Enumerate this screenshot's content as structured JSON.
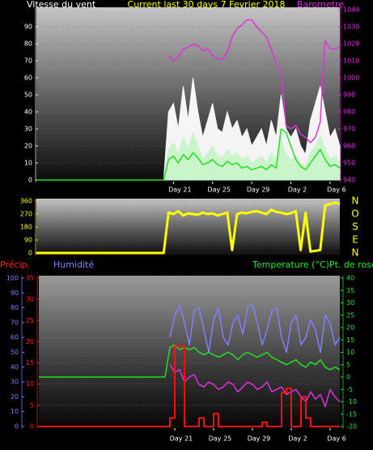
{
  "chart_data": [
    {
      "type": "line",
      "title": "Current last 30 days 7 Fevrier 2018",
      "ylabel": "Vitesse du vent",
      "y2label": "Barometre",
      "x": [
        0,
        13,
        13.5,
        14,
        14.5,
        15,
        15.5,
        16,
        16.5,
        17,
        17.5,
        18,
        18.5,
        19,
        19.5,
        20,
        20.5,
        21,
        21.5,
        22,
        22.5,
        23,
        23.5,
        24,
        24.5,
        25,
        25.5,
        26,
        26.5,
        27,
        27.5,
        28,
        28.5,
        29,
        29.5,
        30,
        30.5,
        31
      ],
      "xlim": [
        0,
        31
      ],
      "xticks": [
        {
          "value": 14,
          "label": "Day 21"
        },
        {
          "value": 18,
          "label": "Day 25"
        },
        {
          "value": 22,
          "label": "Day 29"
        },
        {
          "value": 26,
          "label": "Day 2"
        },
        {
          "value": 30,
          "label": "Day 6"
        }
      ],
      "ylim": [
        0,
        100
      ],
      "yticks": [
        0,
        10,
        20,
        30,
        40,
        50,
        60,
        70,
        80,
        90
      ],
      "y2lim": [
        940,
        1040
      ],
      "y2ticks": [
        940,
        950,
        960,
        970,
        980,
        990,
        1000,
        1010,
        1020,
        1030,
        1040
      ],
      "grid": true,
      "series": [
        {
          "color": "#ffffff",
          "style": "area",
          "values": [
            0,
            0,
            40,
            45,
            30,
            55,
            35,
            60,
            40,
            25,
            35,
            45,
            30,
            28,
            40,
            30,
            35,
            25,
            30,
            20,
            25,
            30,
            20,
            35,
            25,
            50,
            30,
            25,
            30,
            20,
            15,
            35,
            45,
            55,
            40,
            25,
            30,
            20
          ]
        },
        {
          "color": "#c8f5c8",
          "style": "area",
          "values": [
            0,
            0,
            18,
            22,
            15,
            25,
            18,
            28,
            20,
            12,
            16,
            20,
            14,
            13,
            18,
            14,
            16,
            12,
            14,
            10,
            12,
            14,
            10,
            16,
            12,
            24,
            15,
            12,
            14,
            10,
            8,
            16,
            20,
            26,
            18,
            12,
            14,
            10
          ]
        },
        {
          "color": "#22dd22",
          "style": "line",
          "values": [
            0,
            0,
            12,
            14,
            10,
            15,
            12,
            16,
            13,
            9,
            10,
            12,
            9,
            8,
            11,
            9,
            10,
            7,
            8,
            6,
            7,
            8,
            6,
            9,
            7,
            30,
            28,
            20,
            12,
            8,
            6,
            10,
            14,
            18,
            12,
            8,
            9,
            7
          ]
        },
        {
          "color": "#e030e0",
          "style": "line",
          "axis": "y2",
          "values": [
            null,
            null,
            1013,
            1010,
            1012,
            1017,
            1018,
            1019.5,
            1019,
            1016,
            1017,
            1013,
            1011,
            1011,
            1015,
            1024,
            1029,
            1031,
            1034,
            1034,
            1030,
            1027,
            1024,
            1017,
            1008,
            1004,
            972,
            970,
            972,
            967,
            965,
            962,
            965,
            974,
            1022,
            1017,
            1017,
            1018
          ]
        }
      ]
    },
    {
      "type": "line",
      "x": [
        0,
        13,
        13.5,
        14,
        14.5,
        15,
        15.5,
        16,
        16.5,
        17,
        17.5,
        18,
        18.5,
        19,
        19.5,
        20,
        20.5,
        21,
        21.5,
        22,
        22.5,
        23,
        23.5,
        24,
        24.5,
        25,
        25.5,
        26,
        26.5,
        27,
        27.5,
        28,
        28.5,
        29,
        29.5,
        30,
        30.5,
        31
      ],
      "xlim": [
        0,
        31
      ],
      "ylim": [
        0,
        360
      ],
      "yticks": [
        0,
        90,
        180,
        270,
        360
      ],
      "y2lim": [
        0,
        360
      ],
      "y2ticks": [
        {
          "value": 0,
          "label": "N"
        },
        {
          "value": 90,
          "label": "E"
        },
        {
          "value": 180,
          "label": "S"
        },
        {
          "value": 270,
          "label": "O"
        },
        {
          "value": 360,
          "label": "N"
        }
      ],
      "grid": true,
      "series": [
        {
          "color": "#ffff00",
          "style": "line",
          "width": 3,
          "values": [
            0,
            0,
            280,
            270,
            290,
            260,
            275,
            270,
            265,
            280,
            270,
            275,
            260,
            270,
            280,
            20,
            270,
            280,
            275,
            285,
            290,
            280,
            270,
            300,
            285,
            280,
            270,
            275,
            290,
            20,
            280,
            10,
            15,
            20,
            330,
            340,
            350,
            340
          ]
        }
      ]
    },
    {
      "type": "line",
      "y3label": "Précip.",
      "ylabel": "Humidité",
      "y2label": "Temperature (°C)Pt. de rosée",
      "x": [
        0,
        13,
        13.5,
        14,
        14.5,
        15,
        15.5,
        16,
        16.5,
        17,
        17.5,
        18,
        18.5,
        19,
        19.5,
        20,
        20.5,
        21,
        21.5,
        22,
        22.5,
        23,
        23.5,
        24,
        24.5,
        25,
        25.5,
        26,
        26.5,
        27,
        27.5,
        28,
        28.5,
        29,
        29.5,
        30,
        30.5,
        31
      ],
      "xlim": [
        0,
        31
      ],
      "xticks": [
        {
          "value": 14,
          "label": "Day 21"
        },
        {
          "value": 18,
          "label": "Day 25"
        },
        {
          "value": 22,
          "label": "Day 29"
        },
        {
          "value": 26,
          "label": "Day 2"
        },
        {
          "value": 30,
          "label": "Day 6"
        }
      ],
      "ylim": [
        0,
        100
      ],
      "yticks": [
        0,
        10,
        20,
        30,
        40,
        50,
        60,
        70,
        80,
        90,
        100
      ],
      "y3lim": [
        0,
        35
      ],
      "y3ticks": [
        0,
        5,
        10,
        15,
        20,
        25,
        30,
        35
      ],
      "y2lim": [
        -20,
        40
      ],
      "y2ticks": [
        -20,
        -15,
        -10,
        -5,
        0,
        5,
        10,
        15,
        20,
        25,
        30,
        35,
        40
      ],
      "grid": true,
      "series": [
        {
          "color": "#8080ff",
          "style": "line",
          "values": [
            null,
            null,
            60,
            75,
            82,
            70,
            55,
            78,
            80,
            65,
            50,
            72,
            80,
            60,
            55,
            70,
            75,
            62,
            80,
            82,
            70,
            55,
            65,
            78,
            80,
            60,
            50,
            70,
            75,
            55,
            60,
            72,
            65,
            50,
            75,
            70,
            55,
            60
          ]
        },
        {
          "color": "#22dd22",
          "style": "line",
          "axis": "y2",
          "values": [
            0,
            0,
            12,
            13,
            11,
            12,
            11,
            12,
            10,
            9,
            10,
            9,
            8,
            9,
            10,
            9,
            7,
            9,
            10,
            9,
            8,
            9,
            10,
            8,
            7,
            6,
            5,
            6,
            7,
            5,
            4,
            6,
            5,
            7,
            4,
            3,
            4,
            3
          ]
        },
        {
          "color": "#e030e0",
          "style": "line",
          "axis": "y2",
          "values": [
            null,
            null,
            5,
            2,
            3,
            -2,
            0,
            1,
            -3,
            -4,
            -2,
            -3,
            -5,
            -4,
            -2,
            -3,
            -6,
            -4,
            -2,
            -3,
            -5,
            -4,
            -2,
            -6,
            -5,
            -4,
            -7,
            -6,
            -5,
            -8,
            -10,
            -6,
            -9,
            -7,
            -12,
            -5,
            -8,
            -10
          ]
        },
        {
          "color": "#ff1010",
          "style": "line",
          "step": true,
          "width": 2,
          "axis": "y3",
          "values": [
            0,
            0,
            2,
            19,
            19,
            0,
            0,
            0,
            2,
            0,
            0,
            3,
            0,
            0,
            0,
            0,
            0,
            0,
            0,
            0,
            0,
            1,
            0,
            0,
            0,
            8,
            9,
            0,
            0,
            7,
            2,
            0,
            0,
            0,
            0,
            0,
            0,
            0
          ]
        }
      ]
    }
  ]
}
